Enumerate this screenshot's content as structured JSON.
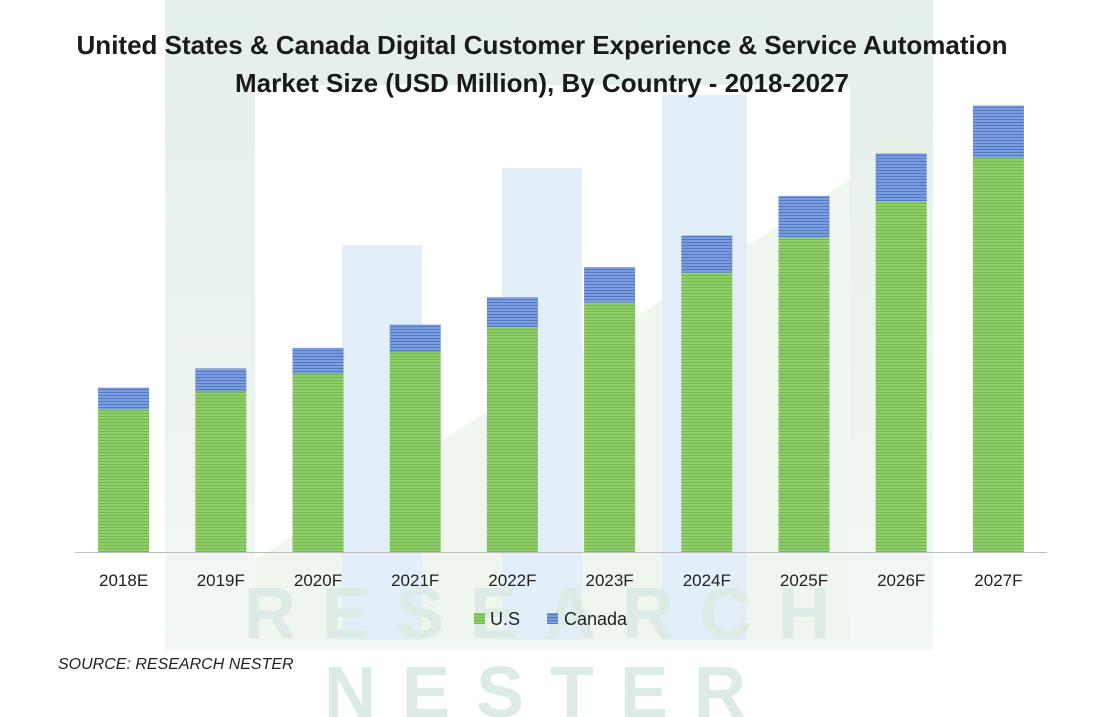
{
  "chart_data": {
    "type": "bar",
    "stacked": true,
    "title_lines": [
      "United States & Canada Digital Customer Experience & Service Automation",
      "Market Size (USD Million), By Country - 2018-2027"
    ],
    "categories": [
      "2018E",
      "2019F",
      "2020F",
      "2021F",
      "2022F",
      "2023F",
      "2024F",
      "2025F",
      "2026F",
      "2027F"
    ],
    "series": [
      {
        "name": "U.S",
        "color": "#8fcf6a",
        "values": [
          104,
          117,
          130,
          146,
          164,
          182,
          204,
          230,
          256,
          288
        ]
      },
      {
        "name": "Canada",
        "color": "#6f93d6",
        "values": [
          16,
          17,
          19,
          20,
          22,
          26,
          27,
          30,
          35,
          38
        ]
      }
    ],
    "ylim": [
      0,
      330
    ],
    "xlabel": "",
    "ylabel": "",
    "grid": false,
    "legend_position": "bottom-center"
  },
  "watermark": {
    "line1": "RESEARCH",
    "line2": "NESTER"
  },
  "source": "SOURCE: RESEARCH NESTER"
}
